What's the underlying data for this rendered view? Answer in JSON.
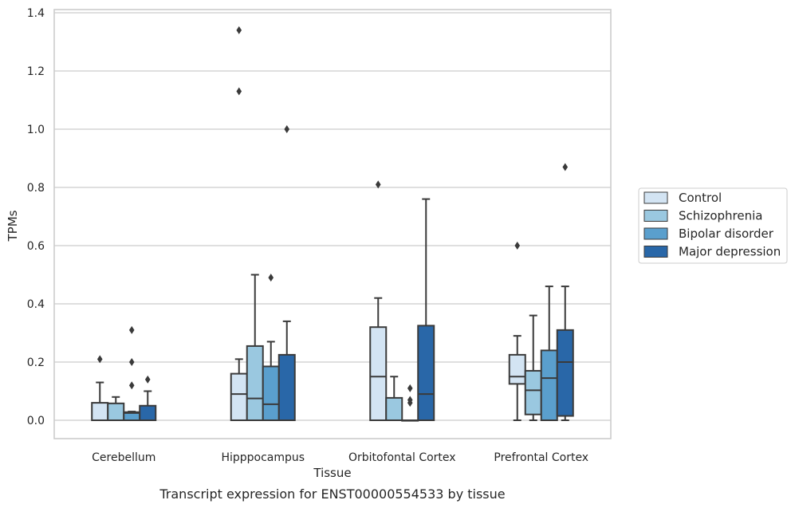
{
  "chart_data": {
    "type": "box",
    "caption": "Transcript expression for ENST00000554533 by tissue",
    "xlabel": "Tissue",
    "ylabel": "TPMs",
    "ylim": [
      -0.063,
      1.41
    ],
    "yticks": [
      0.0,
      0.2,
      0.4,
      0.6,
      0.8,
      1.0,
      1.2,
      1.4
    ],
    "ytick_labels": [
      "0.0",
      "0.2",
      "0.4",
      "0.6",
      "0.8",
      "1.0",
      "1.2",
      "1.4"
    ],
    "grid": "horizontal",
    "legend_position": "right",
    "categories": [
      "Cerebellum",
      "Hipppocampus",
      "Orbitofontal Cortex",
      "Prefrontal Cortex"
    ],
    "series": [
      {
        "name": "Control",
        "color": "#d3e4f3",
        "boxes": [
          {
            "whisker_low": 0.0,
            "q1": 0.0,
            "median": 0.0,
            "q3": 0.06,
            "whisker_high": 0.13,
            "outliers": [
              0.21
            ]
          },
          {
            "whisker_low": 0.0,
            "q1": 0.0,
            "median": 0.09,
            "q3": 0.16,
            "whisker_high": 0.21,
            "outliers": [
              1.34,
              1.13
            ]
          },
          {
            "whisker_low": 0.0,
            "q1": 0.0,
            "median": 0.15,
            "q3": 0.32,
            "whisker_high": 0.42,
            "outliers": [
              0.81
            ]
          },
          {
            "whisker_low": 0.0,
            "q1": 0.125,
            "median": 0.15,
            "q3": 0.225,
            "whisker_high": 0.29,
            "outliers": [
              0.6
            ]
          }
        ]
      },
      {
        "name": "Schizophrenia",
        "color": "#9ac8e0",
        "boxes": [
          {
            "whisker_low": 0.0,
            "q1": 0.0,
            "median": 0.0,
            "q3": 0.058,
            "whisker_high": 0.08,
            "outliers": []
          },
          {
            "whisker_low": 0.0,
            "q1": 0.0,
            "median": 0.075,
            "q3": 0.255,
            "whisker_high": 0.5,
            "outliers": []
          },
          {
            "whisker_low": 0.0,
            "q1": 0.0,
            "median": 0.0,
            "q3": 0.077,
            "whisker_high": 0.15,
            "outliers": []
          },
          {
            "whisker_low": 0.0,
            "q1": 0.02,
            "median": 0.103,
            "q3": 0.17,
            "whisker_high": 0.36,
            "outliers": []
          }
        ]
      },
      {
        "name": "Bipolar disorder",
        "color": "#5a9fcd",
        "boxes": [
          {
            "whisker_low": 0.0,
            "q1": 0.0,
            "median": 0.025,
            "q3": 0.028,
            "whisker_high": 0.03,
            "outliers": [
              0.31,
              0.2,
              0.12
            ]
          },
          {
            "whisker_low": 0.0,
            "q1": 0.0,
            "median": 0.055,
            "q3": 0.185,
            "whisker_high": 0.27,
            "outliers": [
              0.49
            ]
          },
          {
            "whisker_low": 0.0,
            "q1": 0.0,
            "median": 0.0,
            "q3": 0.0,
            "whisker_high": 0.0,
            "outliers": [
              0.11,
              0.07,
              0.06
            ]
          },
          {
            "whisker_low": 0.0,
            "q1": 0.0,
            "median": 0.145,
            "q3": 0.24,
            "whisker_high": 0.46,
            "outliers": []
          }
        ]
      },
      {
        "name": "Major depression",
        "color": "#2967a8",
        "boxes": [
          {
            "whisker_low": 0.0,
            "q1": 0.0,
            "median": 0.0,
            "q3": 0.05,
            "whisker_high": 0.1,
            "outliers": [
              0.14
            ]
          },
          {
            "whisker_low": 0.0,
            "q1": 0.0,
            "median": 0.0,
            "q3": 0.225,
            "whisker_high": 0.34,
            "outliers": [
              1.0
            ]
          },
          {
            "whisker_low": 0.0,
            "q1": 0.0,
            "median": 0.09,
            "q3": 0.325,
            "whisker_high": 0.76,
            "outliers": []
          },
          {
            "whisker_low": 0.0,
            "q1": 0.015,
            "median": 0.2,
            "q3": 0.31,
            "whisker_high": 0.46,
            "outliers": [
              0.87
            ]
          }
        ]
      }
    ]
  }
}
